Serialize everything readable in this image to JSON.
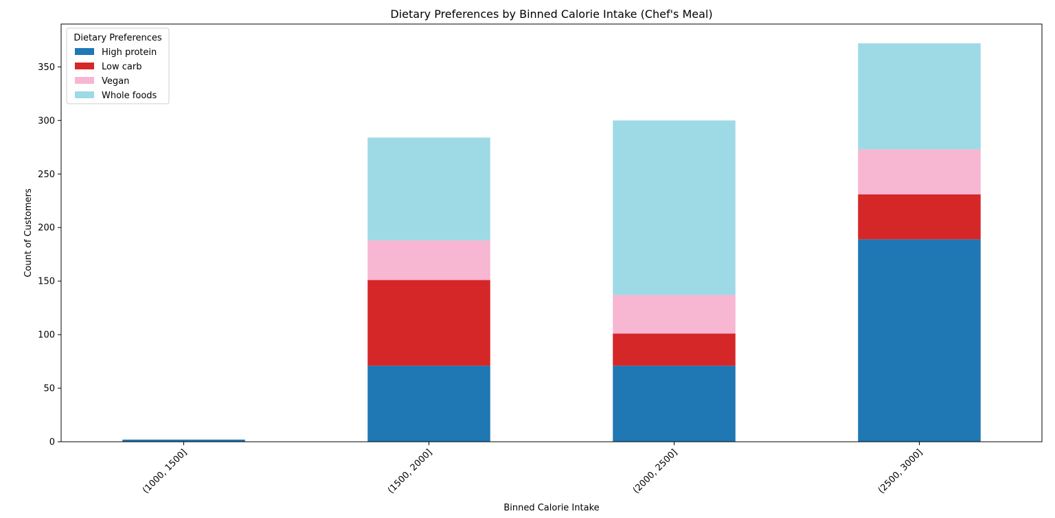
{
  "chart_data": {
    "type": "bar",
    "stacked": true,
    "title": "Dietary Preferences by Binned Calorie Intake (Chef's Meal)",
    "xlabel": "Binned Calorie Intake",
    "ylabel": "Count of Customers",
    "categories": [
      "(1000, 1500]",
      "(1500, 2000]",
      "(2000, 2500]",
      "(2500, 3000]"
    ],
    "ylim": [
      0,
      390
    ],
    "yticks": [
      0,
      50,
      100,
      150,
      200,
      250,
      300,
      350
    ],
    "grid": false,
    "legend": {
      "title": "Dietary Preferences",
      "placement": "top-left"
    },
    "series": [
      {
        "name": "High protein",
        "color": "#1f77b4",
        "values": [
          2,
          71,
          71,
          189
        ]
      },
      {
        "name": "Low carb",
        "color": "#d62728",
        "values": [
          0,
          80,
          30,
          42
        ]
      },
      {
        "name": "Vegan",
        "color": "#f7b6d2",
        "values": [
          0,
          37,
          36,
          42
        ]
      },
      {
        "name": "Whole foods",
        "color": "#9edae5",
        "values": [
          0,
          96,
          163,
          99
        ]
      }
    ]
  }
}
